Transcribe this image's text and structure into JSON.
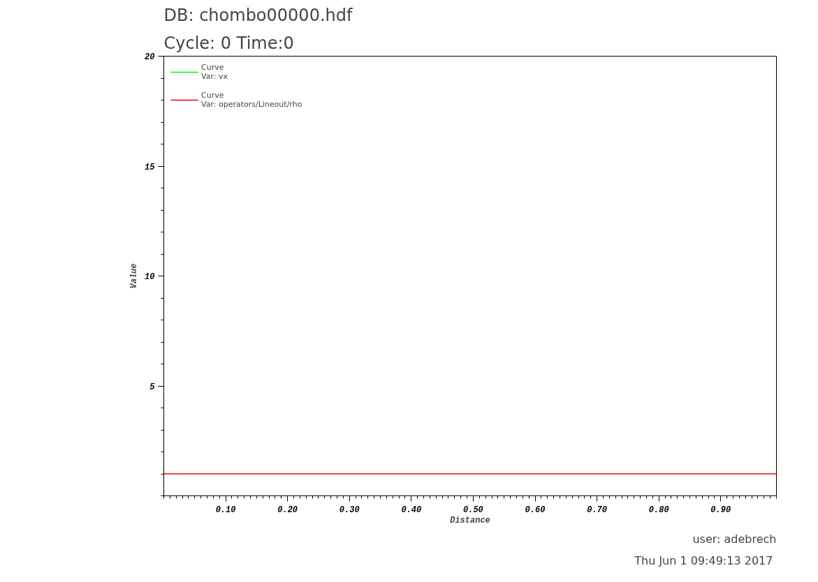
{
  "chart_data": {
    "type": "line",
    "title": "DB: chombo00000.hdf",
    "subtitle": "Cycle: 0      Time:0",
    "xlabel": "Distance",
    "ylabel": "Value",
    "x": [
      0,
      0.99
    ],
    "series": [
      {
        "name": "Curve\nVar: vx",
        "color": "#00ff00",
        "values": [
          null,
          null
        ]
      },
      {
        "name": "Curve\nVar: operators/Lineout/rho",
        "color": "#ff0000",
        "values": [
          1,
          1
        ]
      }
    ],
    "xlim": [
      0,
      0.99
    ],
    "ylim": [
      0,
      20
    ],
    "xticks": [
      {
        "value": 0.1,
        "label": "0.10"
      },
      {
        "value": 0.2,
        "label": "0.20"
      },
      {
        "value": 0.3,
        "label": "0.30"
      },
      {
        "value": 0.4,
        "label": "0.40"
      },
      {
        "value": 0.5,
        "label": "0.50"
      },
      {
        "value": 0.6,
        "label": "0.60"
      },
      {
        "value": 0.7,
        "label": "0.70"
      },
      {
        "value": 0.8,
        "label": "0.80"
      },
      {
        "value": 0.9,
        "label": "0.90"
      }
    ],
    "yticks": [
      5,
      10,
      15,
      20
    ],
    "grid": false,
    "legend": "top left",
    "marker": "none",
    "line_style": "solid",
    "annotations": [
      "user: adebrech",
      "Thu Jun  1 09:49:13 2017"
    ]
  }
}
